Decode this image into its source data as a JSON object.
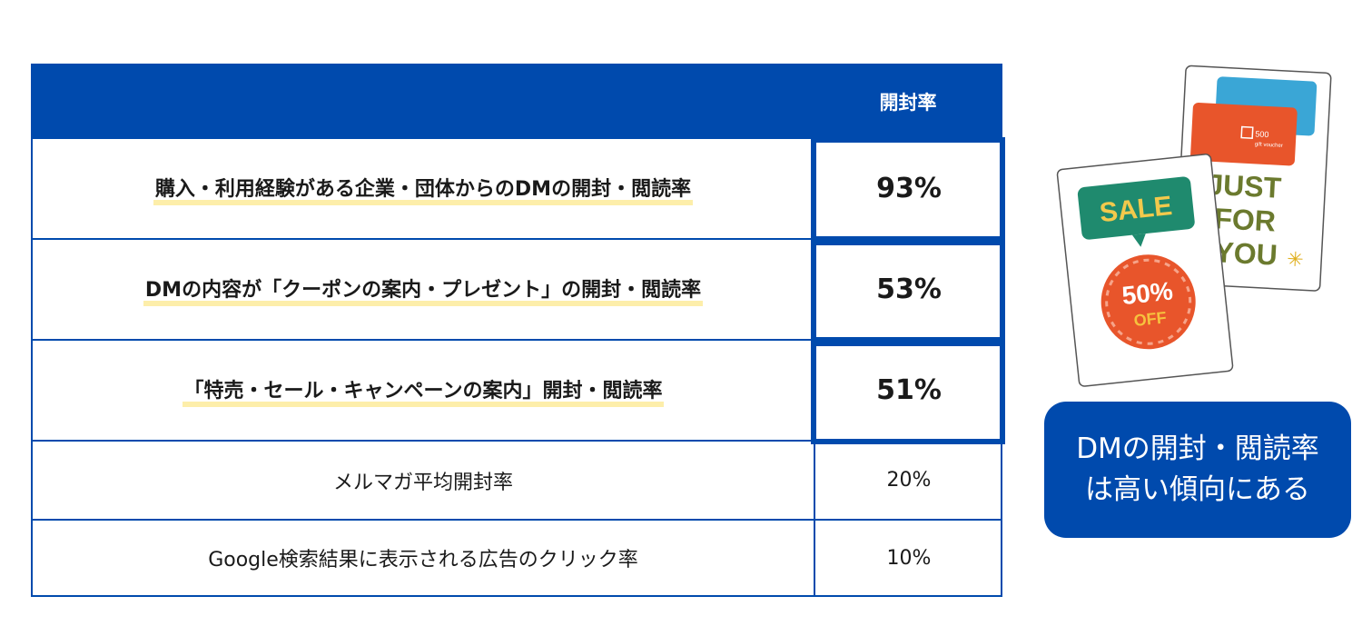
{
  "table": {
    "header": {
      "value_col": "開封率"
    },
    "rows": [
      {
        "label": "購入・利用経験がある企業・団体からのDMの開封・閲読率",
        "value": "93%",
        "highlight": true
      },
      {
        "label": "DMの内容が「クーポンの案内・プレゼント」の開封・閲読率",
        "value": "53%",
        "highlight": true
      },
      {
        "label": "「特売・セール・キャンペーンの案内」開封・閲読率",
        "value": "51%",
        "highlight": true
      },
      {
        "label": "メルマガ平均開封率",
        "value": "20%",
        "highlight": false
      },
      {
        "label": "Google検索結果に表示される広告のクリック率",
        "value": "10%",
        "highlight": false
      }
    ]
  },
  "illustration": {
    "sale_sign": "SALE",
    "discount": "50%",
    "discount_sub": "OFF",
    "back_card_text": [
      "JUST",
      "FOR",
      "YOU"
    ],
    "voucher_text": "500",
    "voucher_sub": "gift voucher"
  },
  "callout": {
    "line1": "DMの開封・閲読率",
    "line2": "は高い傾向にある"
  },
  "colors": {
    "brand_blue": "#004aad",
    "highlight_yellow": "#fdeeaa"
  }
}
